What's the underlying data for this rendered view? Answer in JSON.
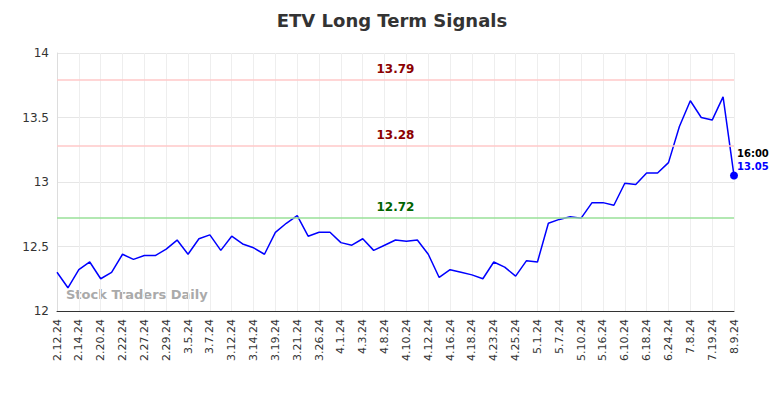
{
  "chart_data": {
    "type": "line",
    "title": "ETV Long Term Signals",
    "categories": [
      "2.12.24",
      null,
      "2.14.24",
      null,
      "2.20.24",
      null,
      "2.22.24",
      null,
      "2.27.24",
      null,
      "2.29.24",
      null,
      "3.5.24",
      null,
      "3.7.24",
      null,
      "3.12.24",
      null,
      "3.14.24",
      null,
      "3.19.24",
      null,
      "3.21.24",
      null,
      "3.26.24",
      null,
      "4.1.24",
      null,
      "4.3.24",
      null,
      "4.8.24",
      null,
      "4.10.24",
      null,
      "4.12.24",
      null,
      "4.16.24",
      null,
      "4.18.24",
      null,
      "4.23.24",
      null,
      "4.25.24",
      null,
      "5.1.24",
      null,
      "5.7.24",
      null,
      "5.10.24",
      null,
      "5.16.24",
      null,
      "6.10.24",
      null,
      "6.18.24",
      null,
      "6.24.24",
      null,
      "7.8.24",
      null,
      "7.19.24",
      null,
      "8.9.24"
    ],
    "values": [
      12.3,
      12.18,
      12.32,
      12.38,
      12.25,
      12.3,
      12.44,
      12.4,
      12.43,
      12.43,
      12.48,
      12.55,
      12.44,
      12.56,
      12.59,
      12.47,
      12.58,
      12.52,
      12.49,
      12.44,
      12.61,
      12.68,
      12.74,
      12.58,
      12.61,
      12.61,
      12.53,
      12.51,
      12.56,
      12.47,
      12.51,
      12.55,
      12.54,
      12.55,
      12.44,
      12.26,
      12.32,
      12.3,
      12.28,
      12.25,
      12.38,
      12.34,
      12.27,
      12.39,
      12.38,
      12.68,
      12.71,
      12.73,
      12.72,
      12.84,
      12.84,
      12.82,
      12.99,
      12.98,
      13.07,
      13.07,
      13.15,
      13.43,
      13.63,
      13.5,
      13.48,
      13.66,
      13.05
    ],
    "color": "#0000ff",
    "ylim": [
      12,
      14
    ],
    "yticks": [
      12,
      12.5,
      13,
      13.5,
      14
    ],
    "grid": true,
    "marker": "last",
    "last_time": "16:00",
    "hlines": [
      {
        "value": 13.79,
        "color": "#ffc8c8",
        "label_color": "#8b0000"
      },
      {
        "value": 13.28,
        "color": "#ffc8c8",
        "label_color": "#8b0000"
      },
      {
        "value": 12.72,
        "color": "#98e098",
        "label_color": "#006400"
      }
    ],
    "watermark": "Stock Traders Daily"
  }
}
